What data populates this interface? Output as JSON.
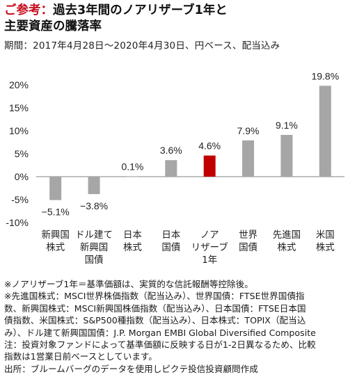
{
  "title": {
    "prefix": "ご参考：",
    "line1": "過去3年間のノアリザーブ1年と",
    "line2": "主要資産の騰落率"
  },
  "period": "期間：2017年4月28日～2020年4月30日、円ベース、配当込み",
  "chart_data": {
    "type": "bar",
    "categories": [
      [
        "新興国",
        "株式"
      ],
      [
        "ドル建て",
        "新興国",
        "国債"
      ],
      [
        "日本",
        "株式"
      ],
      [
        "日本",
        "国債"
      ],
      [
        "ノア",
        "リザーブ",
        "1年"
      ],
      [
        "世界",
        "国債"
      ],
      [
        "先進国",
        "株式"
      ],
      [
        "米国",
        "株式"
      ]
    ],
    "values": [
      -5.1,
      -3.8,
      0.1,
      3.6,
      4.6,
      7.9,
      9.1,
      19.8
    ],
    "data_labels": [
      "−5.1%",
      "−3.8%",
      "0.1%",
      "3.6%",
      "4.6%",
      "7.9%",
      "9.1%",
      "19.8%"
    ],
    "ylim": [
      -10,
      20
    ],
    "yticks": [
      20,
      15,
      10,
      5,
      0,
      -5,
      -10
    ],
    "ytick_labels": [
      "20%",
      "15%",
      "10%",
      "5%",
      "0%",
      "-5%",
      "-10%"
    ],
    "colors": {
      "default": "#a6a6a6",
      "highlight": "#c00000",
      "axis": "#808080"
    },
    "highlight_index": 4,
    "grid": false
  },
  "notes": [
    "※ノアリザーブ1年＝基準価額は、実質的な信託報酬等控除後。",
    "※先進国株式：MSCI世界株価指数（配当込み）、世界国債：FTSE世界国債指",
    "数、新興国株式：MSCI新興国株価指数（配当込み）、日本国債：FTSE日本国",
    "債指数、米国株式：S&P500種指数（配当込み）、日本株式：TOPIX（配当込",
    "み）、ドル建て新興国国債：J.P. Morgan EMBI Global Diversified Composite",
    "注：投資対象ファンドによって基準価額に反映する日が1-2日異なるため、比較",
    "指数は1営業日前ベースとしています。",
    "出所：ブルームバーグのデータを使用しピクテ投信投資顧問作成"
  ]
}
